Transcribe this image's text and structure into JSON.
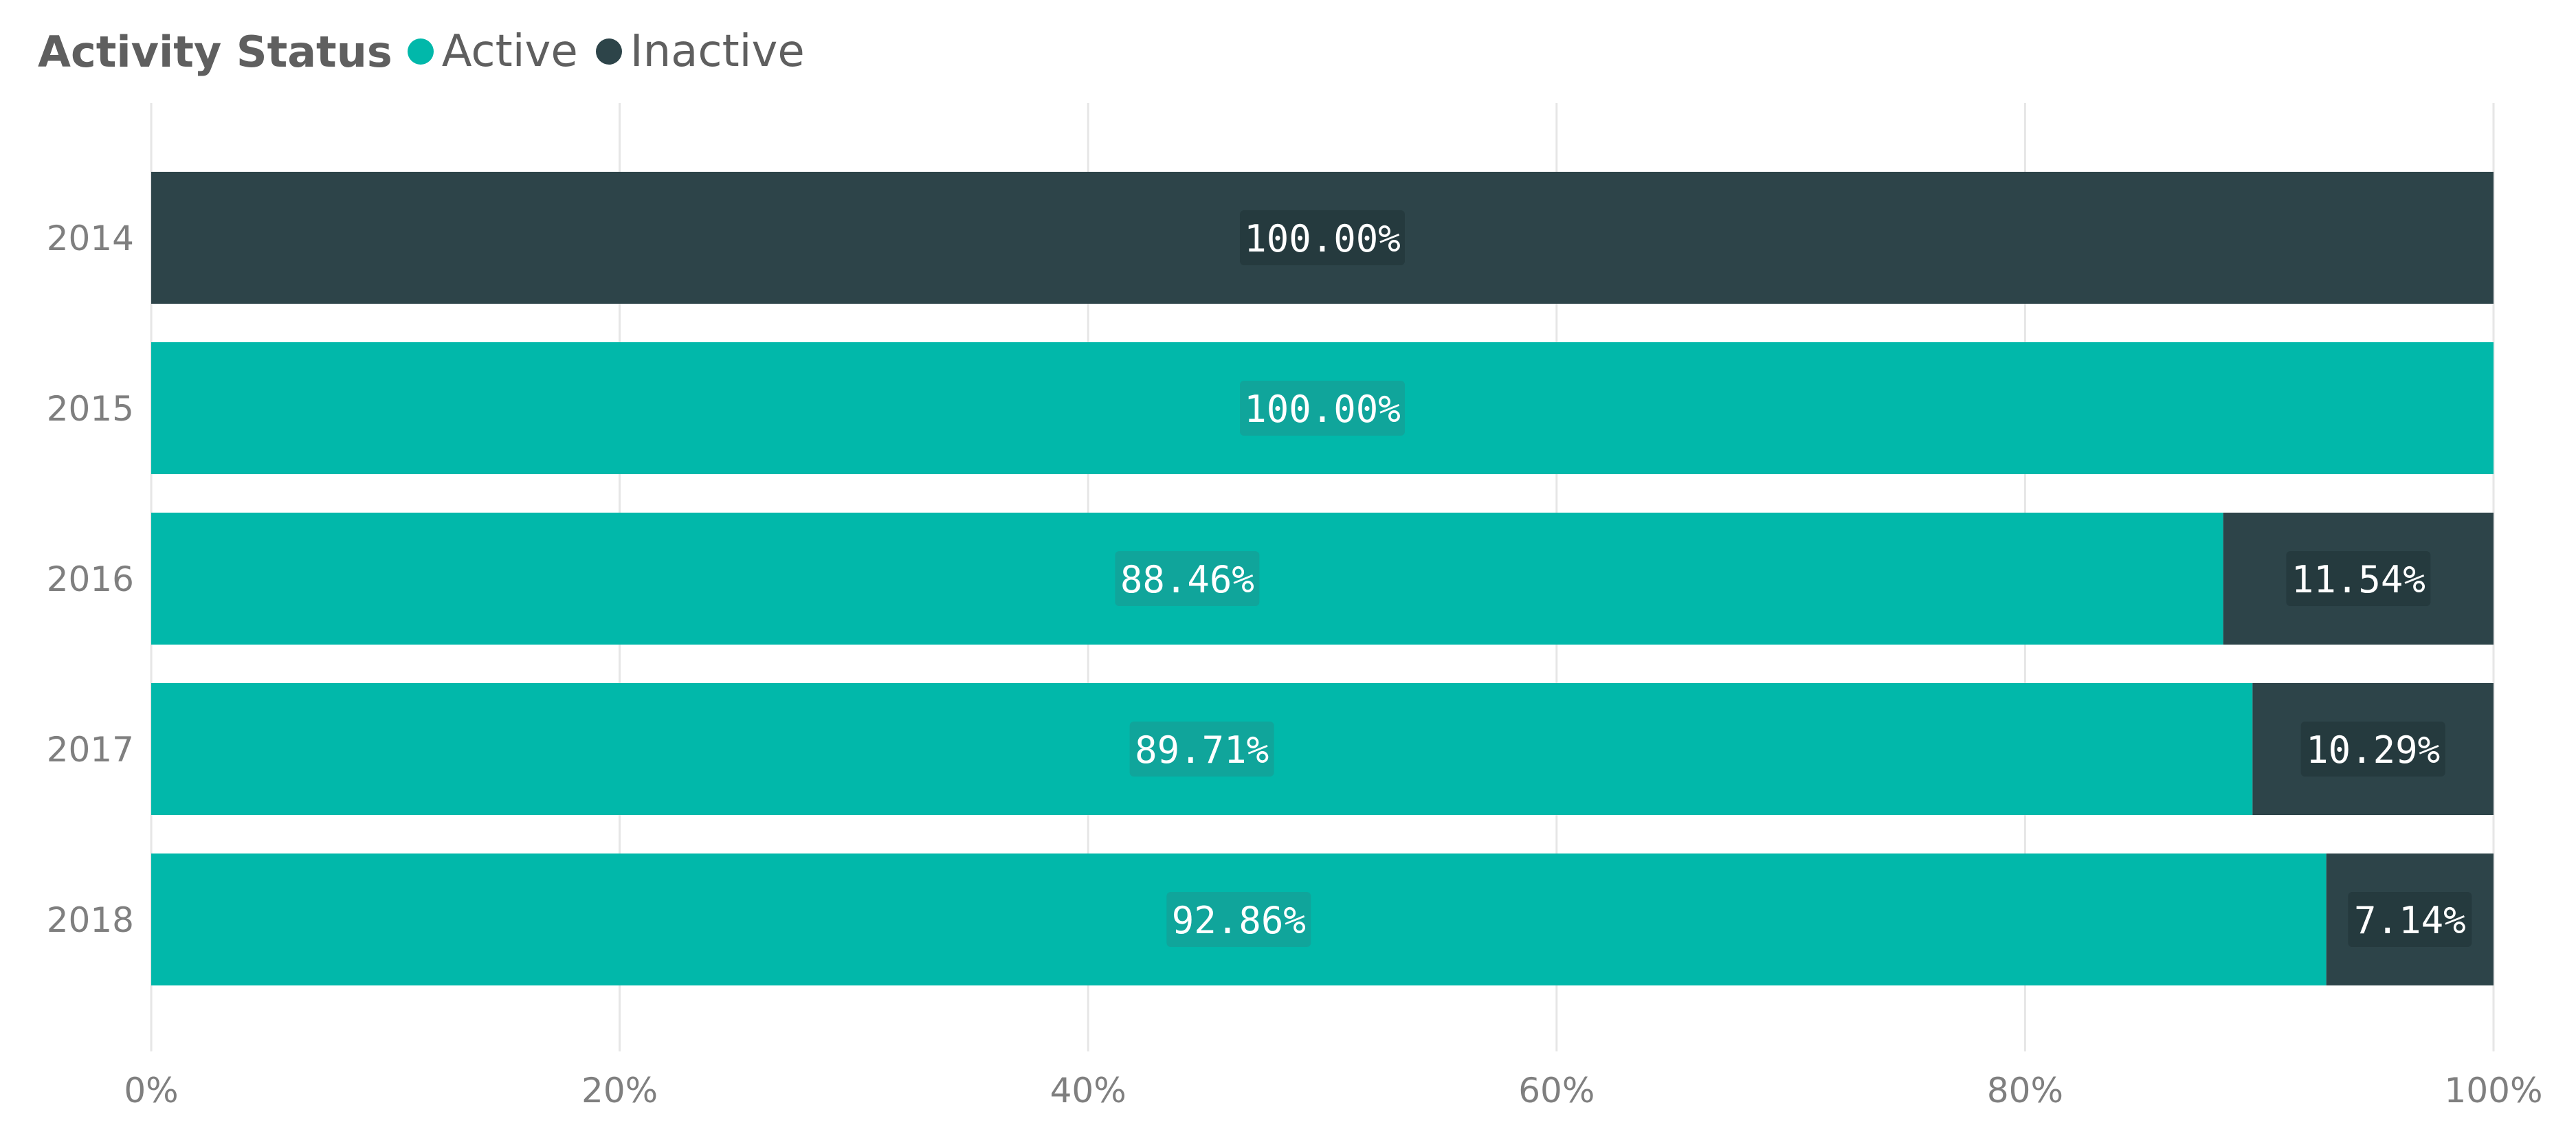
{
  "colors": {
    "active": "#01b8aa",
    "inactive": "#2d4449",
    "grid": "#e6e6e6",
    "axis_text": "#7f7f7f",
    "active_label_bg": "#10a59b",
    "inactive_label_bg": "#253a3e",
    "label_text": "#ffffff"
  },
  "chart_data": {
    "type": "bar",
    "orientation": "horizontal",
    "stacked": "100%",
    "legend_title": "Activity Status",
    "legend_position": "top-left",
    "categories": [
      "2014",
      "2015",
      "2016",
      "2017",
      "2018"
    ],
    "series": [
      {
        "name": "Active",
        "values": [
          0,
          100.0,
          88.46,
          89.71,
          92.86
        ],
        "labels": [
          "",
          "100.00%",
          "88.46%",
          "89.71%",
          "92.86%"
        ]
      },
      {
        "name": "Inactive",
        "values": [
          100.0,
          0,
          11.54,
          10.29,
          7.14
        ],
        "labels": [
          "100.00%",
          "",
          "11.54%",
          "10.29%",
          "7.14%"
        ]
      }
    ],
    "x_ticks": [
      "0%",
      "20%",
      "40%",
      "60%",
      "80%",
      "100%"
    ],
    "xlim": [
      0,
      100
    ],
    "grid": true
  }
}
